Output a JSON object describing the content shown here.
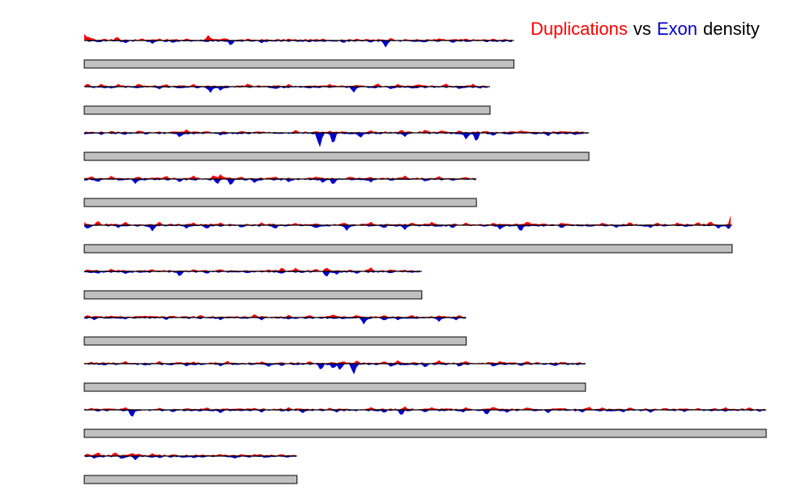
{
  "colors": {
    "duplications": "#ff0000",
    "exon": "#0000cc",
    "text": "#000000",
    "bar_fill": "#c0c0c0",
    "bar_stroke": "#000000"
  },
  "legend": {
    "dup_label": "Duplications",
    "vs_label": "vs",
    "exon_label": "Exon",
    "density_label": "density"
  },
  "chart_data": {
    "type": "area",
    "title": "",
    "xlabel": "",
    "ylabel": "",
    "grid": false,
    "legend_position": "top-right",
    "series_names": [
      "Duplications",
      "Exon"
    ],
    "unit_length": 1000,
    "tracks": [
      {
        "length": 630,
        "dup_peaks": [
          [
            0,
            9
          ],
          [
            5,
            7
          ],
          [
            12,
            4
          ],
          [
            30,
            3
          ],
          [
            48,
            6
          ],
          [
            85,
            3
          ],
          [
            110,
            3
          ],
          [
            150,
            3
          ],
          [
            182,
            8
          ],
          [
            205,
            4
          ],
          [
            240,
            3
          ],
          [
            300,
            3
          ],
          [
            350,
            3
          ],
          [
            400,
            3
          ],
          [
            450,
            4
          ],
          [
            520,
            3
          ],
          [
            560,
            3
          ],
          [
            600,
            3
          ]
        ],
        "exon_peaks": [
          [
            20,
            3
          ],
          [
            60,
            4
          ],
          [
            100,
            5
          ],
          [
            130,
            4
          ],
          [
            215,
            8
          ],
          [
            260,
            4
          ],
          [
            330,
            3
          ],
          [
            380,
            4
          ],
          [
            420,
            3
          ],
          [
            442,
            10
          ],
          [
            500,
            3
          ],
          [
            540,
            4
          ],
          [
            590,
            3
          ]
        ]
      },
      {
        "length": 595,
        "dup_peaks": [
          [
            5,
            5
          ],
          [
            25,
            4
          ],
          [
            50,
            4
          ],
          [
            80,
            5
          ],
          [
            120,
            4
          ],
          [
            160,
            4
          ],
          [
            240,
            5
          ],
          [
            300,
            4
          ],
          [
            360,
            4
          ],
          [
            400,
            3
          ],
          [
            430,
            5
          ],
          [
            460,
            4
          ],
          [
            490,
            4
          ],
          [
            530,
            5
          ],
          [
            570,
            4
          ]
        ],
        "exon_peaks": [
          [
            40,
            3
          ],
          [
            110,
            4
          ],
          [
            185,
            9
          ],
          [
            200,
            6
          ],
          [
            280,
            4
          ],
          [
            330,
            3
          ],
          [
            395,
            9
          ],
          [
            450,
            4
          ],
          [
            480,
            3
          ],
          [
            550,
            4
          ],
          [
            580,
            3
          ]
        ]
      },
      {
        "length": 740,
        "dup_peaks": [
          [
            40,
            3
          ],
          [
            80,
            4
          ],
          [
            150,
            5
          ],
          [
            180,
            3
          ],
          [
            230,
            3
          ],
          [
            310,
            4
          ],
          [
            360,
            3
          ],
          [
            420,
            4
          ],
          [
            465,
            5
          ],
          [
            500,
            5
          ],
          [
            525,
            4
          ],
          [
            550,
            4
          ],
          [
            590,
            3
          ],
          [
            640,
            4
          ],
          [
            700,
            3
          ]
        ],
        "exon_peaks": [
          [
            25,
            3
          ],
          [
            60,
            3
          ],
          [
            140,
            7
          ],
          [
            200,
            4
          ],
          [
            345,
            22
          ],
          [
            365,
            18
          ],
          [
            405,
            8
          ],
          [
            470,
            6
          ],
          [
            560,
            10
          ],
          [
            575,
            14
          ],
          [
            600,
            5
          ],
          [
            625,
            3
          ],
          [
            680,
            5
          ],
          [
            720,
            3
          ]
        ]
      },
      {
        "length": 575,
        "dup_peaks": [
          [
            10,
            4
          ],
          [
            40,
            5
          ],
          [
            80,
            4
          ],
          [
            120,
            5
          ],
          [
            160,
            5
          ],
          [
            190,
            6
          ],
          [
            200,
            7
          ],
          [
            230,
            4
          ],
          [
            280,
            4
          ],
          [
            340,
            4
          ],
          [
            390,
            4
          ],
          [
            420,
            3
          ],
          [
            470,
            5
          ],
          [
            520,
            4
          ],
          [
            560,
            3
          ]
        ],
        "exon_peaks": [
          [
            20,
            5
          ],
          [
            75,
            7
          ],
          [
            140,
            5
          ],
          [
            195,
            8
          ],
          [
            215,
            10
          ],
          [
            250,
            6
          ],
          [
            300,
            5
          ],
          [
            350,
            6
          ],
          [
            365,
            9
          ],
          [
            420,
            5
          ],
          [
            450,
            3
          ],
          [
            500,
            4
          ],
          [
            540,
            3
          ]
        ]
      },
      {
        "length": 950,
        "dup_peaks": [
          [
            0,
            4
          ],
          [
            20,
            7
          ],
          [
            60,
            5
          ],
          [
            110,
            5
          ],
          [
            160,
            4
          ],
          [
            200,
            4
          ],
          [
            260,
            4
          ],
          [
            310,
            3
          ],
          [
            380,
            4
          ],
          [
            420,
            5
          ],
          [
            480,
            4
          ],
          [
            510,
            5
          ],
          [
            560,
            4
          ],
          [
            600,
            4
          ],
          [
            650,
            6
          ],
          [
            700,
            4
          ],
          [
            760,
            4
          ],
          [
            800,
            5
          ],
          [
            840,
            4
          ],
          [
            870,
            4
          ],
          [
            900,
            5
          ],
          [
            918,
            6
          ],
          [
            950,
            22
          ]
        ],
        "exon_peaks": [
          [
            5,
            6
          ],
          [
            50,
            4
          ],
          [
            100,
            9
          ],
          [
            150,
            5
          ],
          [
            180,
            6
          ],
          [
            230,
            4
          ],
          [
            280,
            6
          ],
          [
            340,
            5
          ],
          [
            385,
            8
          ],
          [
            440,
            5
          ],
          [
            470,
            7
          ],
          [
            540,
            5
          ],
          [
            610,
            7
          ],
          [
            640,
            10
          ],
          [
            700,
            5
          ],
          [
            780,
            4
          ],
          [
            830,
            4
          ],
          [
            930,
            5
          ],
          [
            945,
            6
          ]
        ]
      },
      {
        "length": 495,
        "dup_peaks": [
          [
            5,
            3
          ],
          [
            40,
            4
          ],
          [
            100,
            3
          ],
          [
            160,
            3
          ],
          [
            200,
            3
          ],
          [
            270,
            3
          ],
          [
            290,
            6
          ],
          [
            310,
            5
          ],
          [
            340,
            4
          ],
          [
            355,
            6
          ],
          [
            390,
            3
          ],
          [
            420,
            6
          ],
          [
            450,
            3
          ]
        ],
        "exon_peaks": [
          [
            20,
            4
          ],
          [
            60,
            4
          ],
          [
            140,
            8
          ],
          [
            180,
            4
          ],
          [
            240,
            3
          ],
          [
            290,
            4
          ],
          [
            355,
            9
          ],
          [
            370,
            5
          ],
          [
            400,
            4
          ],
          [
            450,
            3
          ]
        ]
      },
      {
        "length": 560,
        "dup_peaks": [
          [
            5,
            4
          ],
          [
            40,
            3
          ],
          [
            90,
            3
          ],
          [
            130,
            3
          ],
          [
            170,
            4
          ],
          [
            250,
            5
          ],
          [
            300,
            4
          ],
          [
            330,
            4
          ],
          [
            365,
            5
          ],
          [
            400,
            4
          ],
          [
            440,
            4
          ],
          [
            480,
            4
          ],
          [
            520,
            3
          ],
          [
            550,
            4
          ]
        ],
        "exon_peaks": [
          [
            15,
            4
          ],
          [
            60,
            3
          ],
          [
            120,
            4
          ],
          [
            200,
            4
          ],
          [
            260,
            4
          ],
          [
            300,
            3
          ],
          [
            410,
            10
          ],
          [
            440,
            5
          ],
          [
            460,
            4
          ],
          [
            520,
            6
          ],
          [
            545,
            4
          ]
        ]
      },
      {
        "length": 735,
        "dup_peaks": [
          [
            10,
            3
          ],
          [
            60,
            4
          ],
          [
            110,
            4
          ],
          [
            160,
            3
          ],
          [
            210,
            4
          ],
          [
            260,
            3
          ],
          [
            330,
            4
          ],
          [
            380,
            4
          ],
          [
            400,
            5
          ],
          [
            440,
            4
          ],
          [
            460,
            5
          ],
          [
            520,
            5
          ],
          [
            560,
            4
          ],
          [
            610,
            4
          ],
          [
            650,
            4
          ],
          [
            700,
            3
          ]
        ],
        "exon_peaks": [
          [
            30,
            3
          ],
          [
            90,
            3
          ],
          [
            150,
            4
          ],
          [
            200,
            4
          ],
          [
            270,
            5
          ],
          [
            290,
            4
          ],
          [
            347,
            10
          ],
          [
            365,
            8
          ],
          [
            375,
            10
          ],
          [
            395,
            16
          ],
          [
            450,
            5
          ],
          [
            500,
            6
          ],
          [
            550,
            5
          ],
          [
            600,
            5
          ],
          [
            640,
            4
          ],
          [
            690,
            4
          ]
        ]
      },
      {
        "length": 1000,
        "dup_peaks": [
          [
            10,
            3
          ],
          [
            60,
            4
          ],
          [
            110,
            3
          ],
          [
            180,
            4
          ],
          [
            250,
            3
          ],
          [
            300,
            4
          ],
          [
            360,
            3
          ],
          [
            420,
            4
          ],
          [
            470,
            5
          ],
          [
            510,
            4
          ],
          [
            560,
            4
          ],
          [
            600,
            5
          ],
          [
            650,
            4
          ],
          [
            700,
            3
          ],
          [
            740,
            5
          ],
          [
            760,
            4
          ],
          [
            800,
            4
          ],
          [
            850,
            3
          ],
          [
            900,
            3
          ],
          [
            940,
            4
          ],
          [
            975,
            4
          ]
        ],
        "exon_peaks": [
          [
            20,
            3
          ],
          [
            70,
            12
          ],
          [
            130,
            4
          ],
          [
            200,
            5
          ],
          [
            260,
            4
          ],
          [
            320,
            5
          ],
          [
            370,
            4
          ],
          [
            440,
            5
          ],
          [
            465,
            9
          ],
          [
            500,
            4
          ],
          [
            555,
            4
          ],
          [
            590,
            8
          ],
          [
            620,
            4
          ],
          [
            680,
            5
          ],
          [
            730,
            4
          ],
          [
            790,
            4
          ],
          [
            830,
            4
          ],
          [
            880,
            3
          ],
          [
            940,
            3
          ],
          [
            990,
            3
          ]
        ]
      },
      {
        "length": 312,
        "dup_peaks": [
          [
            5,
            4
          ],
          [
            20,
            6
          ],
          [
            45,
            6
          ],
          [
            70,
            5
          ],
          [
            80,
            4
          ],
          [
            100,
            4
          ],
          [
            130,
            3
          ],
          [
            200,
            3
          ],
          [
            230,
            3
          ],
          [
            250,
            3
          ],
          [
            290,
            3
          ]
        ],
        "exon_peaks": [
          [
            15,
            4
          ],
          [
            55,
            5
          ],
          [
            75,
            6
          ],
          [
            110,
            3
          ],
          [
            160,
            3
          ],
          [
            220,
            4
          ],
          [
            265,
            3
          ],
          [
            300,
            2
          ]
        ]
      }
    ]
  }
}
